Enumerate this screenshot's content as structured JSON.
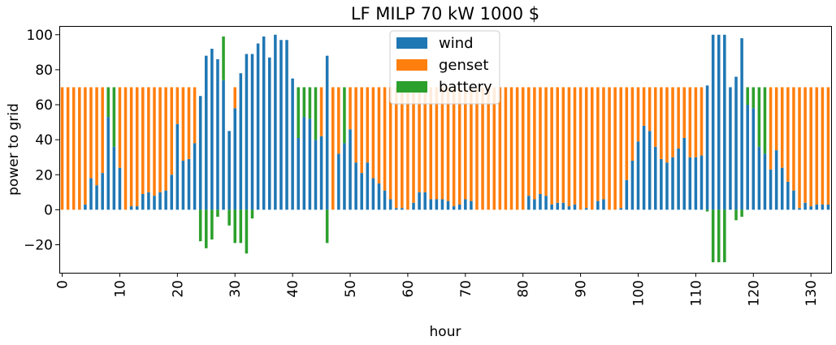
{
  "chart_data": {
    "type": "bar",
    "stacked": true,
    "title": "LF MILP 70 kW 1000 $",
    "xlabel": "hour",
    "ylabel": "power to grid",
    "ylim": [
      -36,
      105
    ],
    "yticks": [
      -20,
      0,
      20,
      40,
      60,
      80,
      100
    ],
    "xticks": [
      0,
      10,
      20,
      30,
      40,
      50,
      60,
      70,
      80,
      90,
      100,
      110,
      120,
      130
    ],
    "legend_position": "top-center",
    "x": [
      0,
      1,
      2,
      3,
      4,
      5,
      6,
      7,
      8,
      9,
      10,
      11,
      12,
      13,
      14,
      15,
      16,
      17,
      18,
      19,
      20,
      21,
      22,
      23,
      24,
      25,
      26,
      27,
      28,
      29,
      30,
      31,
      32,
      33,
      34,
      35,
      36,
      37,
      38,
      39,
      40,
      41,
      42,
      43,
      44,
      45,
      46,
      47,
      48,
      49,
      50,
      51,
      52,
      53,
      54,
      55,
      56,
      57,
      58,
      59,
      60,
      61,
      62,
      63,
      64,
      65,
      66,
      67,
      68,
      69,
      70,
      71,
      72,
      73,
      74,
      75,
      76,
      77,
      78,
      79,
      80,
      81,
      82,
      83,
      84,
      85,
      86,
      87,
      88,
      89,
      90,
      91,
      92,
      93,
      94,
      95,
      96,
      97,
      98,
      99,
      100,
      101,
      102,
      103,
      104,
      105,
      106,
      107,
      108,
      109,
      110,
      111,
      112,
      113,
      114,
      115,
      116,
      117,
      118,
      119,
      120,
      121,
      122,
      123,
      124,
      125,
      126,
      127,
      128,
      129,
      130,
      131,
      132,
      133
    ],
    "series": [
      {
        "name": "wind",
        "color": "#1f77b4",
        "values": [
          0,
          0,
          0,
          0,
          3,
          18,
          14,
          21,
          53,
          36,
          24,
          0,
          2,
          2,
          9,
          10,
          8,
          10,
          11,
          20,
          49,
          28,
          29,
          38,
          65,
          88,
          92,
          86,
          74,
          45,
          58,
          78,
          89,
          89,
          95,
          99,
          87,
          100,
          97,
          97,
          75,
          41,
          53,
          52,
          40,
          42,
          88,
          0,
          32,
          38,
          46,
          27,
          21,
          27,
          18,
          15,
          11,
          6,
          1,
          1,
          0,
          4,
          10,
          10,
          6,
          6,
          6,
          5,
          2,
          3,
          6,
          5,
          0,
          0,
          0,
          0,
          0,
          0,
          0,
          0,
          0,
          8,
          6,
          9,
          8,
          3,
          4,
          4,
          2,
          3,
          0,
          1,
          0,
          5,
          6,
          0,
          0,
          1,
          17,
          28,
          39,
          48,
          45,
          36,
          29,
          27,
          30,
          35,
          41,
          30,
          30,
          31,
          71,
          100,
          100,
          100,
          70,
          76,
          98,
          60,
          58,
          36,
          32,
          23,
          34,
          24,
          16,
          11,
          1,
          4,
          2,
          3,
          3,
          3
        ]
      },
      {
        "name": "genset",
        "color": "#ff7f0e",
        "values": [
          70,
          70,
          70,
          70,
          67,
          52,
          56,
          49,
          0,
          0,
          46,
          70,
          68,
          68,
          61,
          60,
          62,
          60,
          59,
          50,
          21,
          42,
          41,
          32,
          0,
          0,
          0,
          0,
          0,
          0,
          12,
          0,
          0,
          0,
          0,
          0,
          0,
          0,
          0,
          0,
          0,
          0,
          0,
          0,
          0,
          28,
          0,
          70,
          38,
          0,
          24,
          43,
          49,
          43,
          52,
          55,
          59,
          64,
          69,
          69,
          70,
          66,
          60,
          60,
          64,
          64,
          64,
          65,
          68,
          67,
          64,
          65,
          70,
          70,
          70,
          70,
          70,
          70,
          70,
          70,
          70,
          62,
          64,
          61,
          62,
          67,
          66,
          66,
          68,
          67,
          70,
          69,
          70,
          65,
          64,
          70,
          70,
          69,
          53,
          42,
          31,
          22,
          25,
          34,
          41,
          43,
          40,
          35,
          29,
          40,
          40,
          39,
          0,
          0,
          0,
          0,
          0,
          0,
          0,
          0,
          0,
          0,
          0,
          47,
          36,
          46,
          54,
          59,
          69,
          66,
          68,
          67,
          67,
          67
        ]
      },
      {
        "name": "battery",
        "color": "#2ca02c",
        "values": [
          0,
          0,
          0,
          0,
          0,
          0,
          0,
          0,
          17,
          34,
          0,
          0,
          0,
          0,
          0,
          0,
          0,
          0,
          0,
          0,
          0,
          0,
          0,
          0,
          -18,
          -22,
          -17,
          -4,
          25,
          -9,
          -19,
          -19,
          -25,
          -5,
          0,
          0,
          0,
          0,
          0,
          0,
          0,
          29,
          17,
          18,
          30,
          0,
          -19,
          0,
          0,
          32,
          0,
          0,
          0,
          0,
          0,
          0,
          0,
          0,
          0,
          0,
          0,
          0,
          0,
          0,
          0,
          0,
          0,
          0,
          0,
          0,
          0,
          0,
          0,
          0,
          0,
          0,
          0,
          0,
          0,
          0,
          0,
          0,
          0,
          0,
          0,
          0,
          0,
          0,
          0,
          0,
          0,
          0,
          0,
          0,
          0,
          0,
          0,
          0,
          0,
          0,
          0,
          0,
          0,
          0,
          0,
          0,
          0,
          0,
          0,
          0,
          0,
          0,
          -1,
          -30,
          -30,
          -30,
          0,
          -6,
          -4,
          10,
          12,
          34,
          38,
          0,
          0,
          0,
          0,
          0,
          0,
          0,
          0,
          0,
          0,
          0
        ]
      }
    ]
  }
}
